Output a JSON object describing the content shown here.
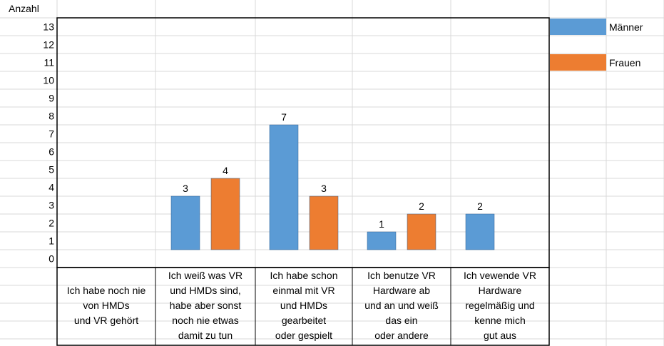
{
  "chart_data": {
    "type": "bar",
    "title": "",
    "ylabel": "Anzahl",
    "xlabel": "",
    "ylim": [
      0,
      13
    ],
    "yticks": [
      13,
      12,
      11,
      10,
      9,
      8,
      7,
      6,
      5,
      4,
      3,
      2,
      1,
      0
    ],
    "yticks_scale_note_removed": true,
    "categories": [
      [
        "Ich habe noch nie",
        "von HMDs",
        "und VR gehört"
      ],
      [
        "Ich weiß was VR",
        "und HMDs sind,",
        "habe aber sonst",
        "noch nie etwas",
        "damit zu tun"
      ],
      [
        "Ich habe schon",
        "einmal mit VR",
        "und HMDs",
        "gearbeitet",
        "oder gespielt"
      ],
      [
        "Ich benutze VR",
        "Hardware ab",
        "und an und weiß",
        "das ein",
        "oder andere"
      ],
      [
        "Ich vewende VR",
        "Hardware",
        "regelmäßig und",
        "kenne mich",
        "gut aus"
      ]
    ],
    "series": [
      {
        "name": "Männer",
        "color": "#5b9bd5",
        "values": [
          0,
          3,
          7,
          1,
          2
        ]
      },
      {
        "name": "Frauen",
        "color": "#ed7d31",
        "values": [
          0,
          4,
          3,
          2,
          0
        ]
      }
    ],
    "grid": true,
    "legend": "right"
  }
}
